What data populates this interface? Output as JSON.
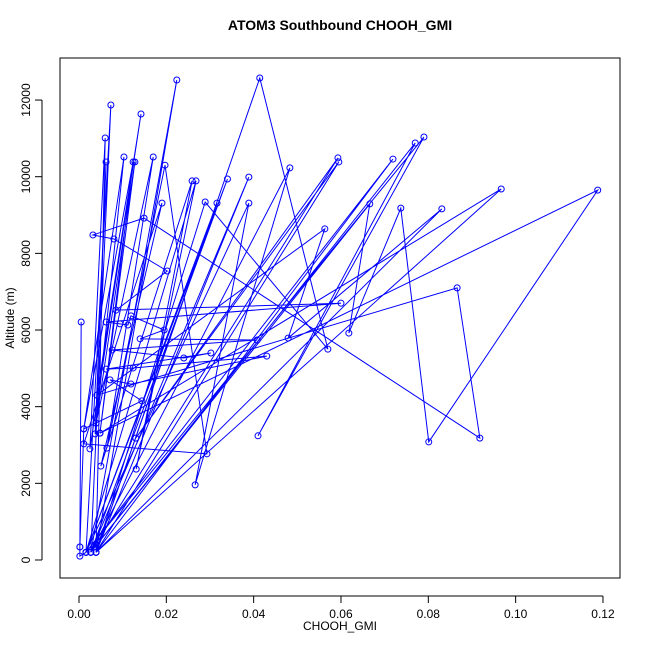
{
  "chart_data": {
    "type": "line",
    "markers": "circle",
    "title": "ATOM3 Southbound CHOOH_GMI",
    "x_label": "CHOOH_GMI",
    "y_label": "Altitude (m)",
    "color": "#0000ff",
    "x": [
      0.0005,
      0.0002,
      0.0002,
      0.0016,
      0.0073,
      0.0027,
      0.0224,
      0.0039,
      0.006,
      0.0025,
      0.0142,
      0.0041,
      0.0062,
      0.0037,
      0.0103,
      0.0011,
      0.0124,
      0.0048,
      0.0128,
      0.0039,
      0.017,
      0.0064,
      0.0197,
      0.0293,
      0.0011,
      0.019,
      0.005,
      0.0259,
      0.0131,
      0.0268,
      0.0016,
      0.034,
      0.0027,
      0.0389,
      0.0039,
      0.0414,
      0.057,
      0.0289,
      0.0039,
      0.0316,
      0.0016,
      0.0389,
      0.0266,
      0.0483,
      0.0027,
      0.0593,
      0.013,
      0.0595,
      0.0039,
      0.0719,
      0.0016,
      0.079,
      0.041,
      0.077,
      0.0027,
      0.0666,
      0.0618,
      0.0737,
      0.0801,
      0.1188,
      0.0048,
      0.0967,
      0.0039,
      0.0831,
      0.0479,
      0.0563,
      0.0041,
      0.0866,
      0.0918,
      0.0149,
      0.0032,
      0.008,
      0.0202,
      0.0085,
      0.06,
      0.0062,
      0.0094,
      0.0112,
      0.0119,
      0.0195,
      0.014,
      0.0408,
      0.0076,
      0.024,
      0.0302,
      0.0062,
      0.0124,
      0.043,
      0.0119,
      0.0071,
      0.0144,
      0.0011,
      0.0002
    ],
    "values": [
      6210,
      340,
      100,
      200,
      11870,
      200,
      12523,
      200,
      11010,
      2900,
      11635,
      4300,
      10385,
      3290,
      10515,
      3420,
      10385,
      3310,
      10385,
      3570,
      10515,
      2920,
      10300,
      2770,
      3030,
      9310,
      2450,
      9890,
      2370,
      9890,
      200,
      9940,
      200,
      9990,
      200,
      12575,
      5500,
      9340,
      200,
      9310,
      200,
      9310,
      1960,
      10230,
      200,
      10490,
      3180,
      10385,
      200,
      10460,
      200,
      11035,
      3240,
      10880,
      200,
      9290,
      5920,
      9180,
      3080,
      9650,
      3310,
      9680,
      200,
      9160,
      5790,
      8640,
      4300,
      7100,
      3180,
      8920,
      8480,
      8375,
      7540,
      6520,
      6700,
      6210,
      6160,
      6130,
      6370,
      6000,
      5770,
      5740,
      5480,
      5270,
      5400,
      4980,
      5010,
      5320,
      4590,
      4700,
      4150,
      3420,
      340
    ],
    "xlim": [
      -0.00435,
      0.1239
    ],
    "ylim": [
      -470,
      13097
    ],
    "xticks": [
      {
        "value": 0,
        "label": "0.00"
      },
      {
        "value": 0.02,
        "label": "0.02"
      },
      {
        "value": 0.04,
        "label": "0.04"
      },
      {
        "value": 0.06,
        "label": "0.06"
      },
      {
        "value": 0.08,
        "label": "0.08"
      },
      {
        "value": 0.1,
        "label": "0.10"
      },
      {
        "value": 0.12,
        "label": "0.12"
      }
    ],
    "yticks": [
      0,
      2000,
      4000,
      6000,
      8000,
      10000,
      12000
    ]
  }
}
